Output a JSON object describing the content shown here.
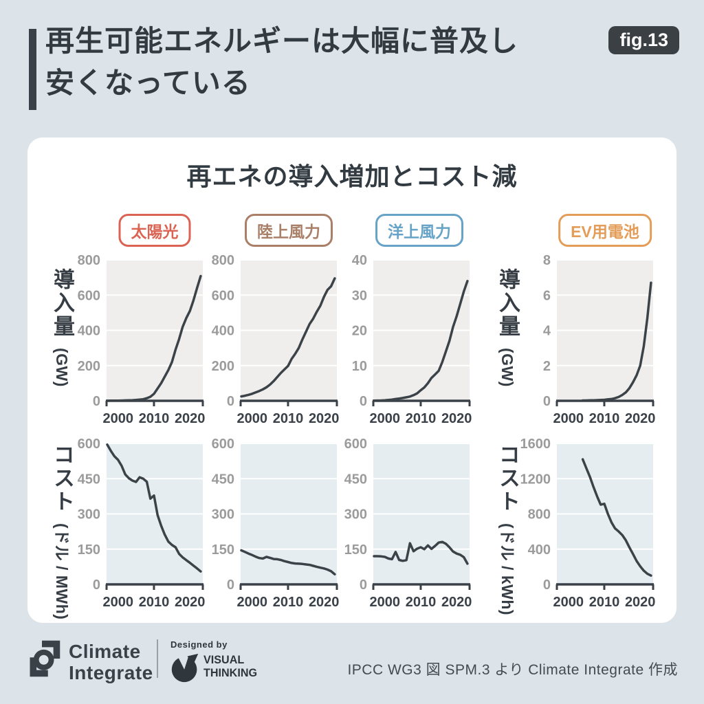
{
  "header": {
    "title_line1": "再生可能エネルギーは大幅に普及し",
    "title_line2": "安くなっている",
    "fig_badge": "fig.13"
  },
  "card": {
    "title": "再エネの導入増加とコスト減"
  },
  "columns": [
    {
      "label": "太陽光",
      "color": "#db6353"
    },
    {
      "label": "陸上風力",
      "color": "#a97f68"
    },
    {
      "label": "洋上風力",
      "color": "#67a3c6"
    },
    {
      "label": "EV用電池",
      "color": "#e39d58"
    }
  ],
  "axis_labels": {
    "adoption": "導入量",
    "adoption_unit": "(GW)",
    "cost": "コスト",
    "cost_unit_mwh": "(ドル / MWh)",
    "cost_unit_kwh": "(ドル / kWh)"
  },
  "colors": {
    "page_bg": "#dce4e9",
    "dark": "#3a4148",
    "line": "#3b4248",
    "adoption_plot_bg": "#efeeec",
    "cost_plot_bg": "#e6edf0",
    "grid": "#ffffff",
    "ytick_text": "#9b9b9b"
  },
  "chart_data": [
    {
      "id": "solar-adoption",
      "type": "line",
      "title": "太陽光 導入量",
      "ylabel": "導入量 (GW)",
      "xlabel": "",
      "xlim": [
        1996.8,
        2023.6
      ],
      "ylim": [
        0,
        800
      ],
      "yticks": [
        0,
        200,
        400,
        600,
        800
      ],
      "xticks": [
        2000,
        2010,
        2020
      ],
      "grid": true,
      "plot_bg": "#efeeec",
      "line_color": "#3b4248",
      "x": [
        1997,
        1998,
        1999,
        2000,
        2001,
        2002,
        2003,
        2004,
        2005,
        2006,
        2007,
        2008,
        2009,
        2010,
        2011,
        2012,
        2013,
        2014,
        2015,
        2016,
        2017,
        2018,
        2019,
        2020,
        2021,
        2022,
        2023
      ],
      "y": [
        0.4,
        0.6,
        0.8,
        1.2,
        1.7,
        2.2,
        2.8,
        3.7,
        5,
        7,
        9,
        15,
        23,
        40,
        70,
        100,
        137,
        175,
        220,
        290,
        350,
        420,
        470,
        510,
        570,
        640,
        708
      ]
    },
    {
      "id": "onshore-wind-adoption",
      "type": "line",
      "title": "陸上風力 導入量",
      "ylabel": "導入量 (GW)",
      "xlabel": "",
      "xlim": [
        1996.8,
        2023.6
      ],
      "ylim": [
        0,
        800
      ],
      "yticks": [
        0,
        200,
        400,
        600,
        800
      ],
      "xticks": [
        2000,
        2010,
        2020
      ],
      "grid": true,
      "plot_bg": "#efeeec",
      "line_color": "#3b4248",
      "x": [
        1997,
        1998,
        1999,
        2000,
        2001,
        2002,
        2003,
        2004,
        2005,
        2006,
        2007,
        2008,
        2009,
        2010,
        2011,
        2012,
        2013,
        2014,
        2015,
        2016,
        2017,
        2018,
        2019,
        2020,
        2021,
        2022,
        2023
      ],
      "y": [
        25,
        29,
        34,
        40,
        48,
        56,
        65,
        77,
        92,
        112,
        135,
        158,
        178,
        198,
        238,
        267,
        300,
        349,
        392,
        436,
        466,
        505,
        540,
        590,
        630,
        650,
        695
      ]
    },
    {
      "id": "offshore-wind-adoption",
      "type": "line",
      "title": "洋上風力 導入量",
      "ylabel": "導入量 (GW)",
      "xlabel": "",
      "xlim": [
        1996.8,
        2023.6
      ],
      "ylim": [
        0,
        40
      ],
      "yticks": [
        0,
        10,
        20,
        30,
        40
      ],
      "xticks": [
        2000,
        2010,
        2020
      ],
      "grid": true,
      "plot_bg": "#efeeec",
      "line_color": "#3b4248",
      "x": [
        1997,
        1998,
        1999,
        2000,
        2001,
        2002,
        2003,
        2004,
        2005,
        2006,
        2007,
        2008,
        2009,
        2010,
        2011,
        2012,
        2013,
        2014,
        2015,
        2016,
        2017,
        2018,
        2019,
        2020,
        2021,
        2022,
        2023
      ],
      "y": [
        0.05,
        0.07,
        0.1,
        0.15,
        0.25,
        0.35,
        0.5,
        0.65,
        0.8,
        1.0,
        1.2,
        1.6,
        2.1,
        3.0,
        3.8,
        5.0,
        6.5,
        7.5,
        8.5,
        11,
        14,
        17,
        21,
        24,
        27.5,
        31,
        34
      ]
    },
    {
      "id": "ev-battery-adoption",
      "type": "line",
      "title": "EV用電池 導入量",
      "ylabel": "導入量 (GW)",
      "xlabel": "",
      "xlim": [
        1996.8,
        2023.6
      ],
      "ylim": [
        0,
        8
      ],
      "yticks": [
        0,
        2,
        4,
        6,
        8
      ],
      "xticks": [
        2000,
        2010,
        2020
      ],
      "grid": true,
      "plot_bg": "#efeeec",
      "line_color": "#3b4248",
      "x": [
        2004,
        2005,
        2006,
        2007,
        2008,
        2009,
        2010,
        2011,
        2012,
        2013,
        2014,
        2015,
        2016,
        2017,
        2018,
        2019,
        2020,
        2021,
        2022,
        2023
      ],
      "y": [
        0.02,
        0.02,
        0.03,
        0.03,
        0.04,
        0.05,
        0.06,
        0.08,
        0.1,
        0.15,
        0.22,
        0.33,
        0.48,
        0.72,
        1.05,
        1.45,
        2.0,
        3.1,
        4.7,
        6.7
      ]
    },
    {
      "id": "solar-cost",
      "type": "line",
      "title": "太陽光 コスト",
      "ylabel": "コスト (ドル / MWh)",
      "xlabel": "",
      "xlim": [
        1996.8,
        2023.6
      ],
      "ylim": [
        0,
        600
      ],
      "yticks": [
        0,
        150,
        300,
        450,
        600
      ],
      "xticks": [
        2000,
        2010,
        2020
      ],
      "grid": true,
      "plot_bg": "#e6edf0",
      "line_color": "#3b4248",
      "x": [
        1997,
        1998,
        1999,
        2000,
        2001,
        2002,
        2003,
        2004,
        2005,
        2006,
        2007,
        2008,
        2009,
        2010,
        2011,
        2012,
        2013,
        2014,
        2015,
        2016,
        2017,
        2018,
        2019,
        2020,
        2021,
        2022,
        2023
      ],
      "y": [
        595,
        568,
        545,
        530,
        505,
        468,
        452,
        442,
        436,
        456,
        450,
        437,
        365,
        378,
        295,
        250,
        212,
        182,
        168,
        158,
        130,
        115,
        103,
        92,
        80,
        68,
        55
      ]
    },
    {
      "id": "onshore-wind-cost",
      "type": "line",
      "title": "陸上風力 コスト",
      "ylabel": "コスト (ドル / MWh)",
      "xlabel": "",
      "xlim": [
        1996.8,
        2023.6
      ],
      "ylim": [
        0,
        600
      ],
      "yticks": [
        0,
        150,
        300,
        450,
        600
      ],
      "xticks": [
        2000,
        2010,
        2020
      ],
      "grid": true,
      "plot_bg": "#e6edf0",
      "line_color": "#3b4248",
      "x": [
        1997,
        1998,
        1999,
        2000,
        2001,
        2002,
        2003,
        2004,
        2005,
        2006,
        2007,
        2008,
        2009,
        2010,
        2011,
        2012,
        2013,
        2014,
        2015,
        2016,
        2017,
        2018,
        2019,
        2020,
        2021,
        2022,
        2023
      ],
      "y": [
        145,
        138,
        131,
        125,
        118,
        112,
        110,
        117,
        113,
        108,
        107,
        104,
        99,
        95,
        91,
        89,
        88,
        87,
        85,
        83,
        79,
        75,
        71,
        68,
        63,
        56,
        43
      ]
    },
    {
      "id": "offshore-wind-cost",
      "type": "line",
      "title": "洋上風力 コスト",
      "ylabel": "コスト (ドル / MWh)",
      "xlabel": "",
      "xlim": [
        1996.8,
        2023.6
      ],
      "ylim": [
        0,
        600
      ],
      "yticks": [
        0,
        150,
        300,
        450,
        600
      ],
      "xticks": [
        2000,
        2010,
        2020
      ],
      "grid": true,
      "plot_bg": "#e6edf0",
      "line_color": "#3b4248",
      "x": [
        1997,
        1998,
        1999,
        2000,
        2001,
        2002,
        2003,
        2004,
        2005,
        2006,
        2007,
        2008,
        2009,
        2010,
        2011,
        2012,
        2013,
        2014,
        2015,
        2016,
        2017,
        2018,
        2019,
        2020,
        2021,
        2022,
        2023
      ],
      "y": [
        120,
        120,
        119,
        117,
        110,
        107,
        138,
        104,
        100,
        103,
        175,
        141,
        152,
        158,
        150,
        166,
        151,
        164,
        178,
        181,
        173,
        158,
        140,
        131,
        126,
        116,
        88
      ]
    },
    {
      "id": "ev-battery-cost",
      "type": "line",
      "title": "EV用電池 コスト",
      "ylabel": "コスト (ドル / kWh)",
      "xlabel": "",
      "xlim": [
        1996.8,
        2023.6
      ],
      "ylim": [
        0,
        1600
      ],
      "yticks": [
        0,
        400,
        800,
        1200,
        1600
      ],
      "xticks": [
        2000,
        2010,
        2020
      ],
      "grid": true,
      "plot_bg": "#e6edf0",
      "line_color": "#3b4248",
      "x": [
        2004,
        2005,
        2006,
        2007,
        2008,
        2009,
        2010,
        2011,
        2012,
        2013,
        2014,
        2015,
        2016,
        2017,
        2018,
        2019,
        2020,
        2021,
        2022,
        2023
      ],
      "y": [
        1420,
        1320,
        1220,
        1105,
        1000,
        905,
        915,
        800,
        705,
        635,
        600,
        560,
        500,
        420,
        345,
        265,
        205,
        155,
        120,
        100
      ]
    }
  ],
  "footer": {
    "brand_line1": "Climate",
    "brand_line2": "Integrate",
    "designed_by": "Designed by",
    "designer_line1": "VISUAL",
    "designer_line2": "THINKING",
    "source": "IPCC WG3 図 SPM.3 より Climate Integrate 作成"
  }
}
